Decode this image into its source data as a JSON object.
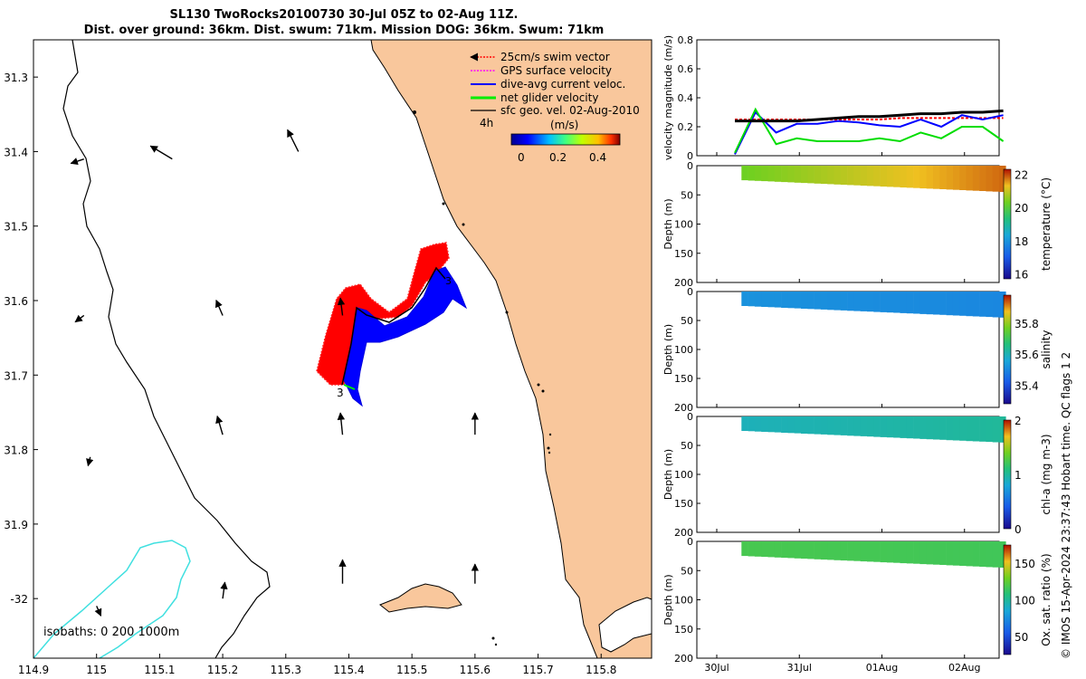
{
  "title": {
    "line1": "SL130 TwoRocks20100730 30-Jul 05Z to 02-Aug 11Z.",
    "line2": "Dist. over ground: 36km. Dist. swum: 71km. Mission DOG: 36km. Swum: 71km"
  },
  "credit": "© IMOS 15-Apr-2024 23:37:43 Hobart time. QC flags 1  2",
  "map": {
    "lon_ticks": [
      "114.9",
      "115",
      "115.1",
      "115.2",
      "115.3",
      "115.4",
      "115.5",
      "115.6",
      "115.7",
      "115.8"
    ],
    "lat_ticks": [
      "31.3",
      "31.4",
      "31.5",
      "31.6",
      "31.7",
      "31.8",
      "31.9",
      "-32"
    ],
    "xlim": [
      114.9,
      115.88
    ],
    "ylim": [
      -32.08,
      -31.25
    ],
    "isobaths_label": "isobaths: 0   200  1000m",
    "legend": {
      "items": [
        {
          "label": "25cm/s swim vector",
          "color": "#ff0000"
        },
        {
          "label": "GPS surface velocity",
          "color": "#ff00ff"
        },
        {
          "label": "dive-avg current veloc.",
          "color": "#0000ff"
        },
        {
          "label": "net glider velocity",
          "color": "#00ee00"
        },
        {
          "label": "sfc geo. vel. 02-Aug-2010",
          "color": "#000000"
        }
      ],
      "marker_4h": "4h",
      "colorbar_title": "(m/s)",
      "colorbar_ticks": [
        "0",
        "0.2",
        "0.4"
      ]
    },
    "track_labels": [
      "3",
      "3"
    ],
    "land_color": "#f9c79c",
    "geostrophic_arrows": [
      {
        "lon": 115.12,
        "lat": -31.41,
        "u": -0.2,
        "v": 0.12
      },
      {
        "lon": 115.32,
        "lat": -31.4,
        "u": -0.1,
        "v": 0.2
      },
      {
        "lon": 114.98,
        "lat": -31.41,
        "u": -0.12,
        "v": -0.04
      },
      {
        "lon": 114.98,
        "lat": -31.62,
        "u": -0.08,
        "v": -0.06
      },
      {
        "lon": 115.2,
        "lat": -31.62,
        "u": -0.06,
        "v": 0.14
      },
      {
        "lon": 115.39,
        "lat": -31.62,
        "u": -0.02,
        "v": 0.16
      },
      {
        "lon": 114.99,
        "lat": -31.81,
        "u": -0.02,
        "v": -0.08
      },
      {
        "lon": 115.2,
        "lat": -31.78,
        "u": -0.05,
        "v": 0.17
      },
      {
        "lon": 115.39,
        "lat": -31.78,
        "u": -0.02,
        "v": 0.2
      },
      {
        "lon": 115.6,
        "lat": -31.78,
        "u": 0.0,
        "v": 0.2
      },
      {
        "lon": 115.0,
        "lat": -32.01,
        "u": 0.04,
        "v": -0.09
      },
      {
        "lon": 115.2,
        "lat": -32.0,
        "u": 0.02,
        "v": 0.15
      },
      {
        "lon": 115.39,
        "lat": -31.98,
        "u": 0.0,
        "v": 0.22
      },
      {
        "lon": 115.6,
        "lat": -31.98,
        "u": 0.0,
        "v": 0.18
      }
    ]
  },
  "chart_data": [
    {
      "type": "line",
      "title": "",
      "xlabel": "",
      "ylabel": "velocity magnitude (m/s)",
      "ylim": [
        0,
        0.8
      ],
      "yticks": [
        "0",
        "0.2",
        "0.4",
        "0.6",
        "0.8"
      ],
      "xticks": [
        "30Jul",
        "31Jul",
        "01Aug",
        "02Aug"
      ],
      "x_days": [
        0.0,
        0.25,
        0.5,
        0.75,
        1.0,
        1.25,
        1.5,
        1.75,
        2.0,
        2.25,
        2.5,
        2.75,
        3.0,
        3.25
      ],
      "series": [
        {
          "name": "swim",
          "color": "#ff0000",
          "values": [
            0.25,
            0.25,
            0.25,
            0.25,
            0.25,
            0.25,
            0.25,
            0.25,
            0.26,
            0.26,
            0.26,
            0.26,
            0.26,
            0.26
          ]
        },
        {
          "name": "dive-avg current",
          "color": "#0000ff",
          "values": [
            0.01,
            0.3,
            0.16,
            0.22,
            0.22,
            0.24,
            0.23,
            0.21,
            0.2,
            0.25,
            0.2,
            0.28,
            0.25,
            0.28
          ]
        },
        {
          "name": "net glider",
          "color": "#00dd00",
          "values": [
            0.02,
            0.32,
            0.08,
            0.12,
            0.1,
            0.1,
            0.1,
            0.12,
            0.1,
            0.16,
            0.12,
            0.2,
            0.2,
            0.1
          ]
        },
        {
          "name": "sfc geo",
          "color": "#000000",
          "values": [
            0.24,
            0.24,
            0.24,
            0.24,
            0.25,
            0.26,
            0.27,
            0.27,
            0.28,
            0.29,
            0.29,
            0.3,
            0.3,
            0.31
          ]
        }
      ]
    },
    {
      "type": "heatmap",
      "ylabel": "Depth (m)",
      "ylim": [
        200,
        0
      ],
      "yticks": [
        "0",
        "50",
        "100",
        "150",
        "200"
      ],
      "colorbar_label": "temperature (°C)",
      "colorbar_ticks": [
        "16",
        "18",
        "20",
        "22"
      ],
      "range": [
        15.7,
        22.3
      ],
      "start_value": 20.3,
      "end_value": 21.8
    },
    {
      "type": "heatmap",
      "ylabel": "Depth (m)",
      "ylim": [
        200,
        0
      ],
      "yticks": [
        "0",
        "50",
        "100",
        "150",
        "200"
      ],
      "colorbar_label": "salinity",
      "colorbar_ticks": [
        "35.4",
        "35.6",
        "35.8"
      ],
      "range": [
        35.28,
        35.98
      ],
      "start_value": 35.52,
      "end_value": 35.5
    },
    {
      "type": "heatmap",
      "ylabel": "Depth (m)",
      "ylim": [
        200,
        0
      ],
      "yticks": [
        "0",
        "50",
        "100",
        "150",
        "200"
      ],
      "colorbar_label": "chl-a (mg m-3)",
      "colorbar_ticks": [
        "0",
        "1",
        "2"
      ],
      "range": [
        0,
        2
      ],
      "start_value": 0.9,
      "end_value": 1.0
    },
    {
      "type": "heatmap",
      "ylabel": "Depth (m)",
      "ylim": [
        200,
        0
      ],
      "yticks": [
        "0",
        "50",
        "100",
        "150",
        "200"
      ],
      "colorbar_label": "Ox. sat. ratio (%)",
      "colorbar_ticks": [
        "50",
        "100",
        "150"
      ],
      "range": [
        25,
        175
      ],
      "start_value": 118,
      "end_value": 116
    }
  ]
}
